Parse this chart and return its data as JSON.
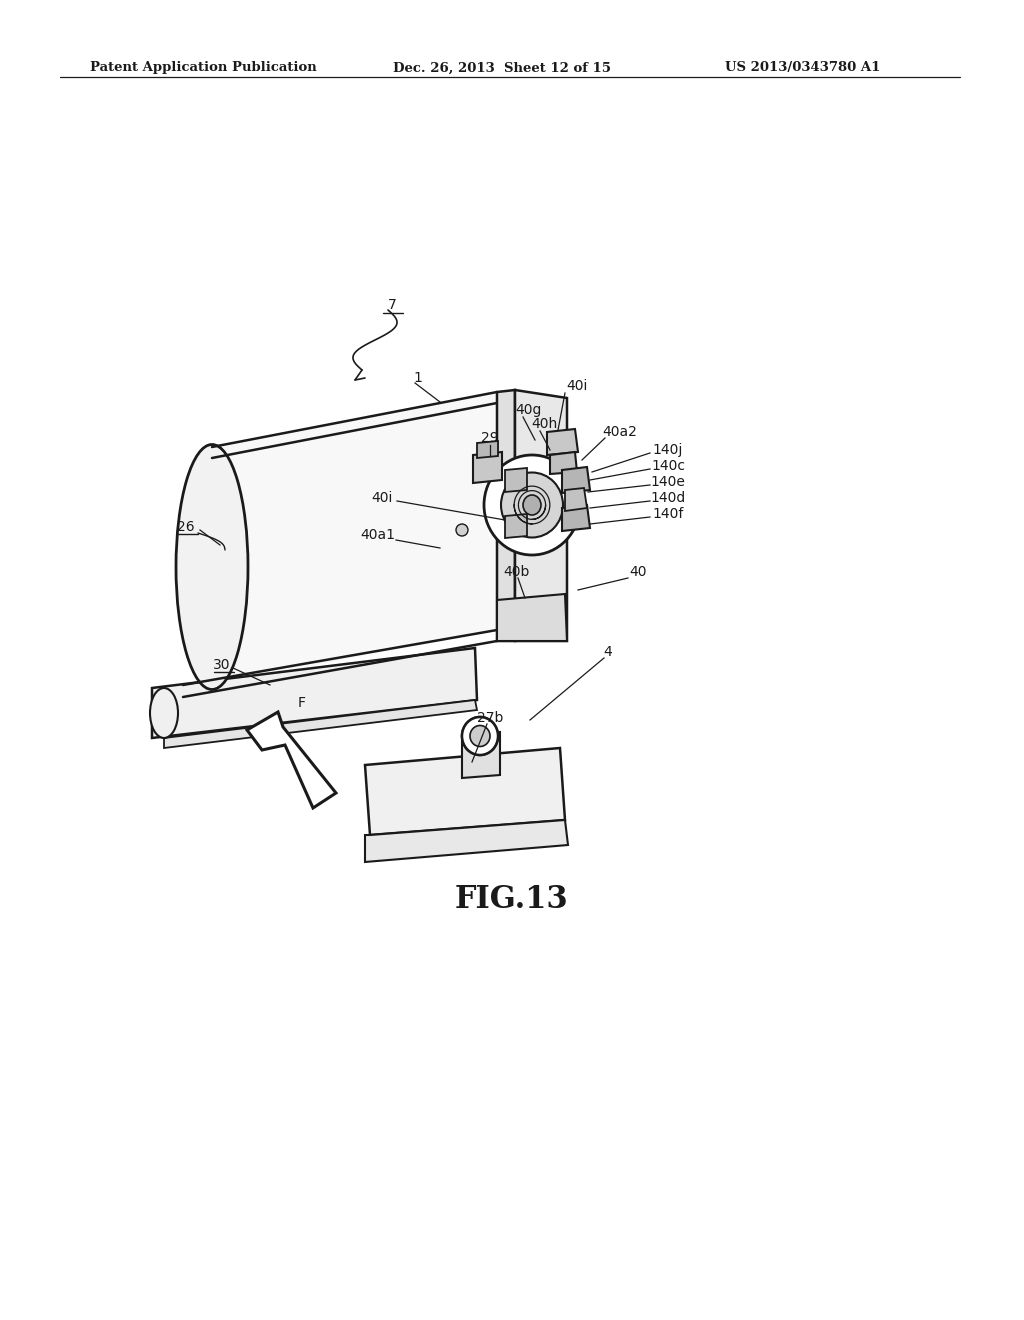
{
  "bg_color": "#ffffff",
  "lc": "#1a1a1a",
  "header_left": "Patent Application Publication",
  "header_mid": "Dec. 26, 2013  Sheet 12 of 15",
  "header_right": "US 2013/0343780 A1",
  "figure_label": "FIG.13"
}
